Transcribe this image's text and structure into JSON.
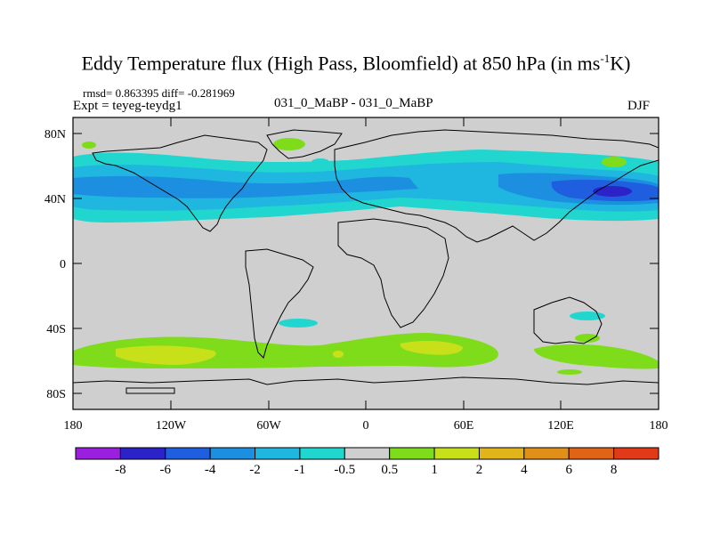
{
  "title": {
    "main": "Eddy Temperature flux (High Pass, Bloomfield) at 850 hPa (in ms",
    "sup": "-1",
    "tail": "K)"
  },
  "stats": "rmsd= 0.863395 diff= -0.281969",
  "expt": "Expt = teyeg-teydg1",
  "subtitle": "031_0_MaBP - 031_0_MaBP",
  "season": "DJF",
  "y_ticks": [
    "80N",
    "40N",
    "0",
    "40S",
    "80S"
  ],
  "x_ticks": [
    "180",
    "120W",
    "60W",
    "0",
    "60E",
    "120E",
    "180"
  ],
  "colorbar": {
    "labels": [
      "-8",
      "-6",
      "-4",
      "-2",
      "-1",
      "-0.5",
      "0.5",
      "1",
      "2",
      "4",
      "6",
      "8"
    ],
    "colors": [
      "#9a1fdf",
      "#2b22c8",
      "#1f5fdf",
      "#1c8fe0",
      "#1fb6e0",
      "#22d6d0",
      "#cfcfcf",
      "#7fdc1a",
      "#c8e01a",
      "#e0b41a",
      "#e09018",
      "#e06418",
      "#e03a18"
    ]
  },
  "colors": {
    "land_fill": "#cfcfcf",
    "coast": "#000000"
  }
}
